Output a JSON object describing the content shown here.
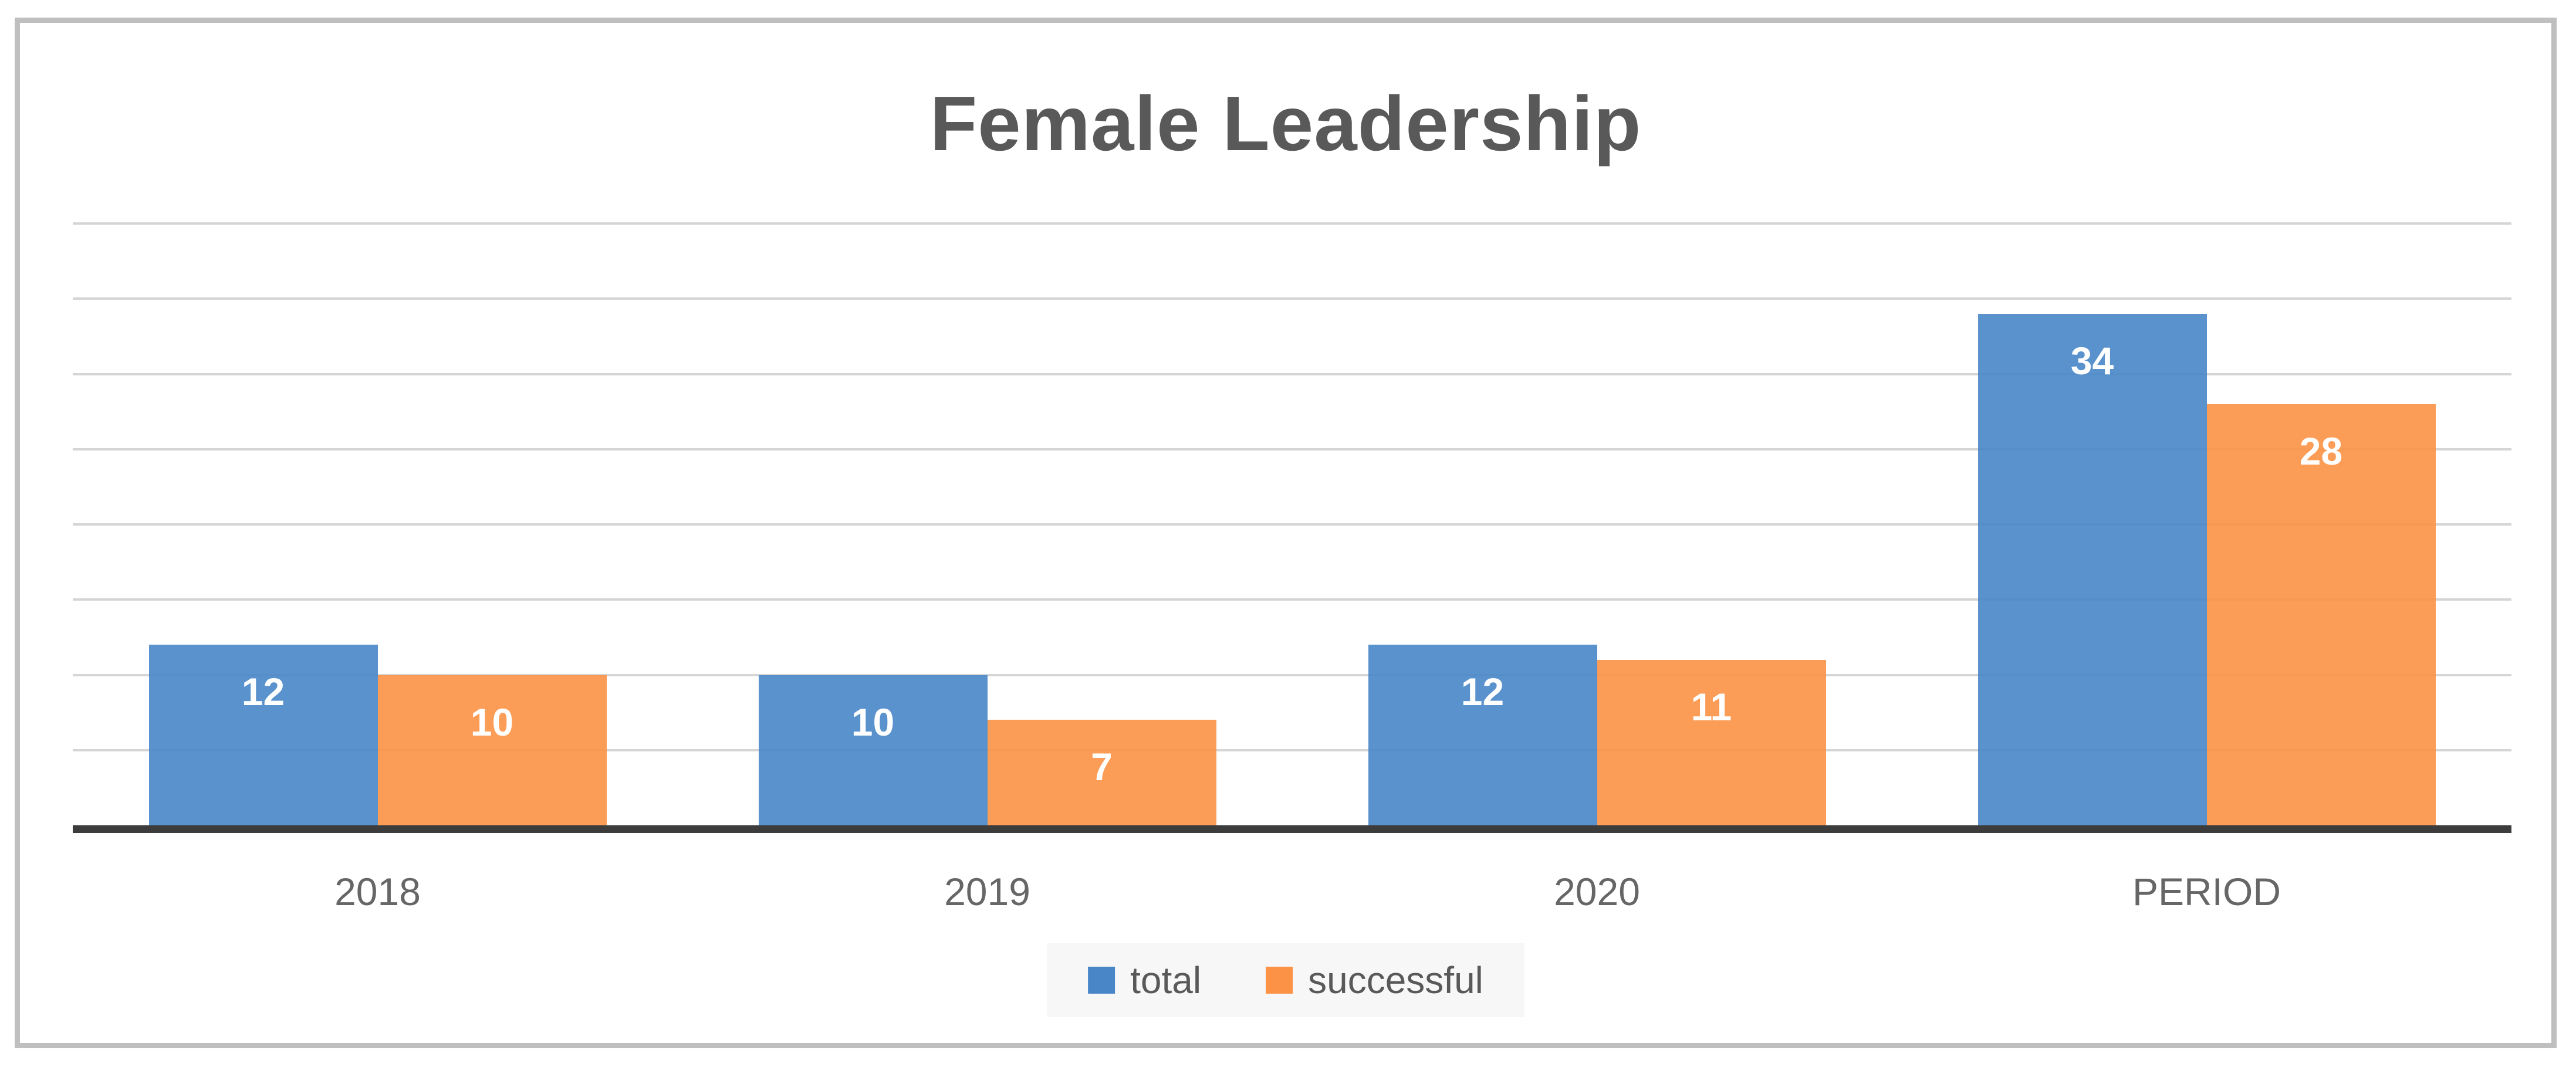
{
  "chart_data": {
    "type": "bar",
    "title": "Female Leadership",
    "categories": [
      "2018",
      "2019",
      "2020",
      "PERIOD"
    ],
    "series": [
      {
        "name": "total",
        "color": "#4886C8",
        "values": [
          12,
          10,
          12,
          34
        ]
      },
      {
        "name": "successful",
        "color": "#FC9245",
        "values": [
          10,
          7,
          11,
          28
        ]
      }
    ],
    "xlabel": "",
    "ylabel": "",
    "ylim": [
      0,
      40
    ],
    "gridline_step": 5,
    "grid": true,
    "legend_position": "bottom",
    "data_labels_position": "inside-end"
  },
  "colors": {
    "title_text": "#595959",
    "category_label_text": "#666666",
    "data_label_text": "#FFFFFF",
    "gridline": "#D5D5D5",
    "axis_line": "#3C3C3C",
    "frame_border": "#BFBFBF",
    "legend_background": "#F7F7F7",
    "legend_text": "#595959"
  }
}
